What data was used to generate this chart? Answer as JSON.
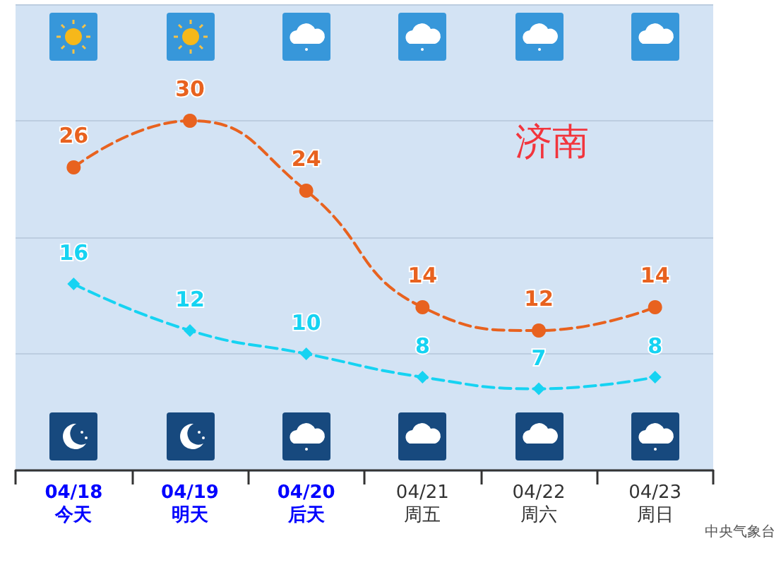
{
  "chart_data": {
    "type": "line",
    "categories": [
      "04/18\n今天",
      "04/19\n明天",
      "04/20\n后天",
      "04/21\n周五",
      "04/22\n周六",
      "04/23\n周日"
    ],
    "series": [
      {
        "color": "#e8621f",
        "values": [
          26,
          30,
          24,
          14,
          12,
          14
        ],
        "marker": "circle"
      },
      {
        "color": "#16d3f2",
        "values": [
          16,
          12,
          10,
          8,
          7,
          8
        ],
        "marker": "diamond"
      }
    ],
    "ylim": [
      0,
      40
    ],
    "yticks": [
      {
        "value": 10,
        "label": null
      },
      {
        "value": 20,
        "label": null
      },
      {
        "value": 30,
        "label": null
      }
    ],
    "grid": "y",
    "line_style": "dashed",
    "data_labels": true,
    "annotations": [
      "济南",
      "中央气象台"
    ]
  }
}
